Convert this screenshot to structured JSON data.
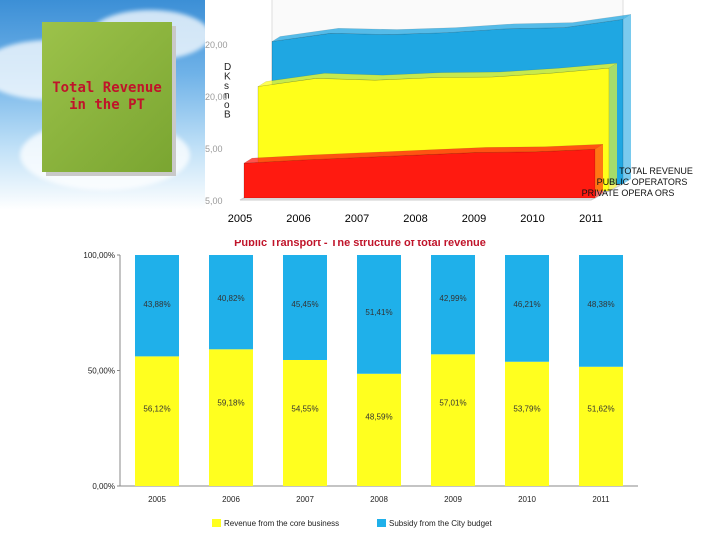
{
  "slide": {
    "title": "Total Revenue\nin the PT"
  },
  "chart_data": [
    {
      "type": "area",
      "title": "",
      "x": [
        "2005",
        "2006",
        "2007",
        "2008",
        "2009",
        "2010",
        "2011"
      ],
      "y_tick_labels": [
        "20,00",
        "20,00",
        "5,00",
        "5,00"
      ],
      "axis_title_glyphs": [
        "D",
        "K",
        "s",
        "n",
        "o",
        "B"
      ],
      "series": [
        {
          "name": "TOTAL REVENUE",
          "color": "#1fa7e2",
          "values": [
            22.5,
            23.8,
            23.6,
            23.9,
            24.5,
            24.7,
            26.0
          ]
        },
        {
          "name": "PUBLIC OPERATORS",
          "color": "#ffff1a",
          "values": [
            16.5,
            17.8,
            17.5,
            17.9,
            18.0,
            18.6,
            19.4
          ]
        },
        {
          "name": "PRIVATE OPERATORS",
          "color": "#ff1a10",
          "values": [
            5.5,
            6.0,
            6.4,
            6.8,
            7.2,
            7.3,
            7.7
          ]
        }
      ],
      "legend_labels": [
        "TOTAL REVENUE",
        "PUBLIC OPERATORS",
        "PRIVATE OPERA ORS"
      ],
      "ylim": [
        0,
        30
      ]
    },
    {
      "type": "bar",
      "stacked": true,
      "title": "Public Transport - The structure of total revenue",
      "categories": [
        "2005",
        "2006",
        "2007",
        "2008",
        "2009",
        "2010",
        "2011"
      ],
      "y_tick_labels": [
        "100,00%",
        "50,00%",
        "0,00%"
      ],
      "ylim": [
        0,
        100
      ],
      "series": [
        {
          "name": "Revenue from the core business",
          "color": "#ffff1f",
          "values": [
            56.12,
            59.18,
            54.55,
            48.59,
            57.01,
            53.79,
            51.62
          ],
          "labels": [
            "56,12%",
            "59,18%",
            "54,55%",
            "48,59%",
            "57,01%",
            "53,79%",
            "51,62%"
          ]
        },
        {
          "name": "Subsidy from the City budget",
          "color": "#1fb0ea",
          "values": [
            43.88,
            40.82,
            45.45,
            51.41,
            42.99,
            46.21,
            48.38
          ],
          "labels": [
            "43,88%",
            "40,82%",
            "45,45%",
            "51,41%",
            "42,99%",
            "46,21%",
            "48,38%"
          ]
        }
      ]
    }
  ]
}
